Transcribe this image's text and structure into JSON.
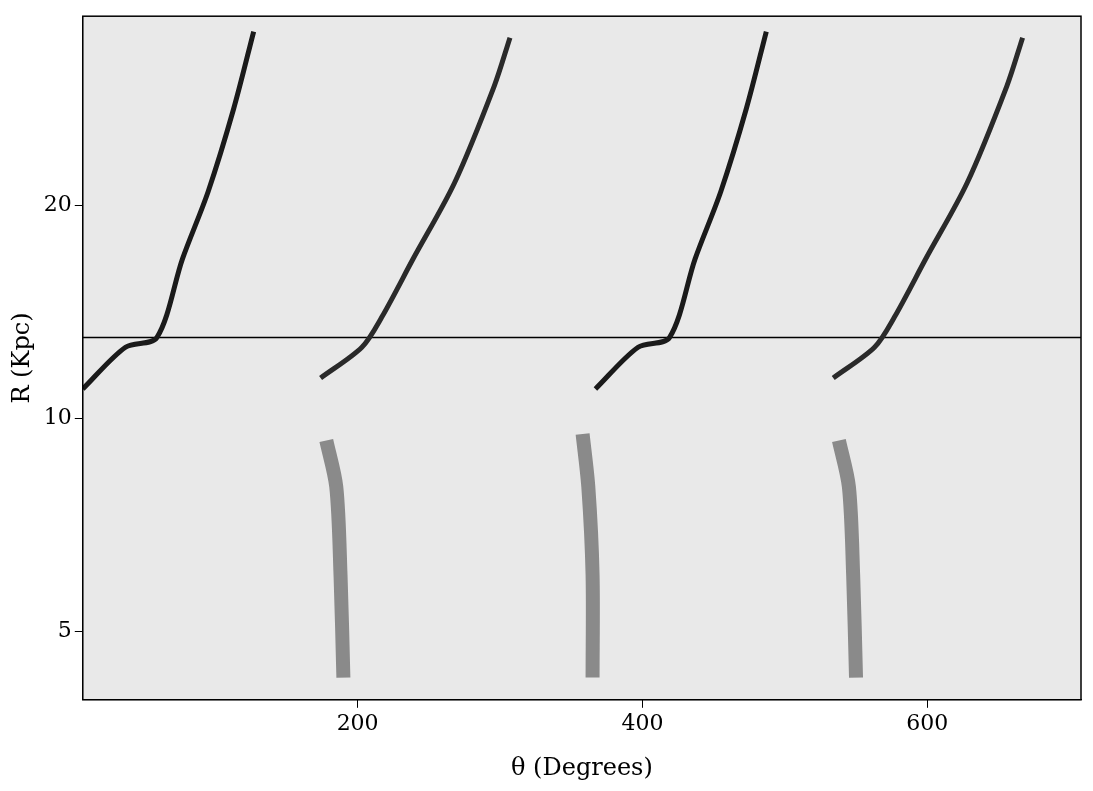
{
  "chart_data": {
    "type": "line",
    "x_label": "θ (Degrees)",
    "y_label": "R (Kpc)",
    "xlim": [
      7,
      708
    ],
    "xticks": [
      200,
      400,
      600
    ],
    "ylim": [
      4,
      37
    ],
    "yticks": [
      5,
      10,
      20
    ],
    "log": "y",
    "grid": false,
    "series": [
      {
        "color": "#1a1a1a",
        "line_style": "solid",
        "x": [
          7,
          37,
          59,
          77,
          95,
          113,
          127
        ],
        "values": [
          11,
          12.6,
          13,
          16.8,
          20.9,
          27.4,
          35.2
        ]
      },
      {
        "color": "#1a1a1a",
        "line_style": "solid",
        "x": [
          367,
          397,
          419,
          437,
          455,
          473,
          487
        ],
        "values": [
          11,
          12.6,
          13,
          16.8,
          20.9,
          27.4,
          35.2
        ]
      },
      {
        "color": "#2a2a2a",
        "line_style": "solid",
        "x": [
          174,
          203,
          217,
          239,
          268,
          296,
          307
        ],
        "values": [
          11.4,
          12.6,
          13.9,
          16.8,
          21.5,
          29.5,
          34.5
        ]
      },
      {
        "color": "#2a2a2a",
        "line_style": "solid",
        "x": [
          534,
          563,
          577,
          599,
          628,
          656,
          667
        ],
        "values": [
          11.4,
          12.6,
          13.9,
          16.8,
          21.5,
          29.5,
          34.5
        ]
      },
      {
        "color": "#8a8a8a",
        "line_style": "solid",
        "x": [
          190,
          188,
          185,
          178
        ],
        "values": [
          4.3,
          6,
          8,
          9.3
        ]
      },
      {
        "color": "#8a8a8a",
        "line_style": "solid",
        "x": [
          550,
          548,
          545,
          538
        ],
        "values": [
          4.3,
          6,
          8,
          9.3
        ]
      },
      {
        "color": "#8a8a8a",
        "line_style": "solid",
        "x": [
          365,
          365,
          362,
          358
        ],
        "values": [
          4.3,
          6,
          8,
          9.5
        ]
      },
      {
        "color": "#000000",
        "line_style": "solid",
        "x": [
          7,
          708
        ],
        "values": [
          13,
          13
        ]
      }
    ]
  }
}
